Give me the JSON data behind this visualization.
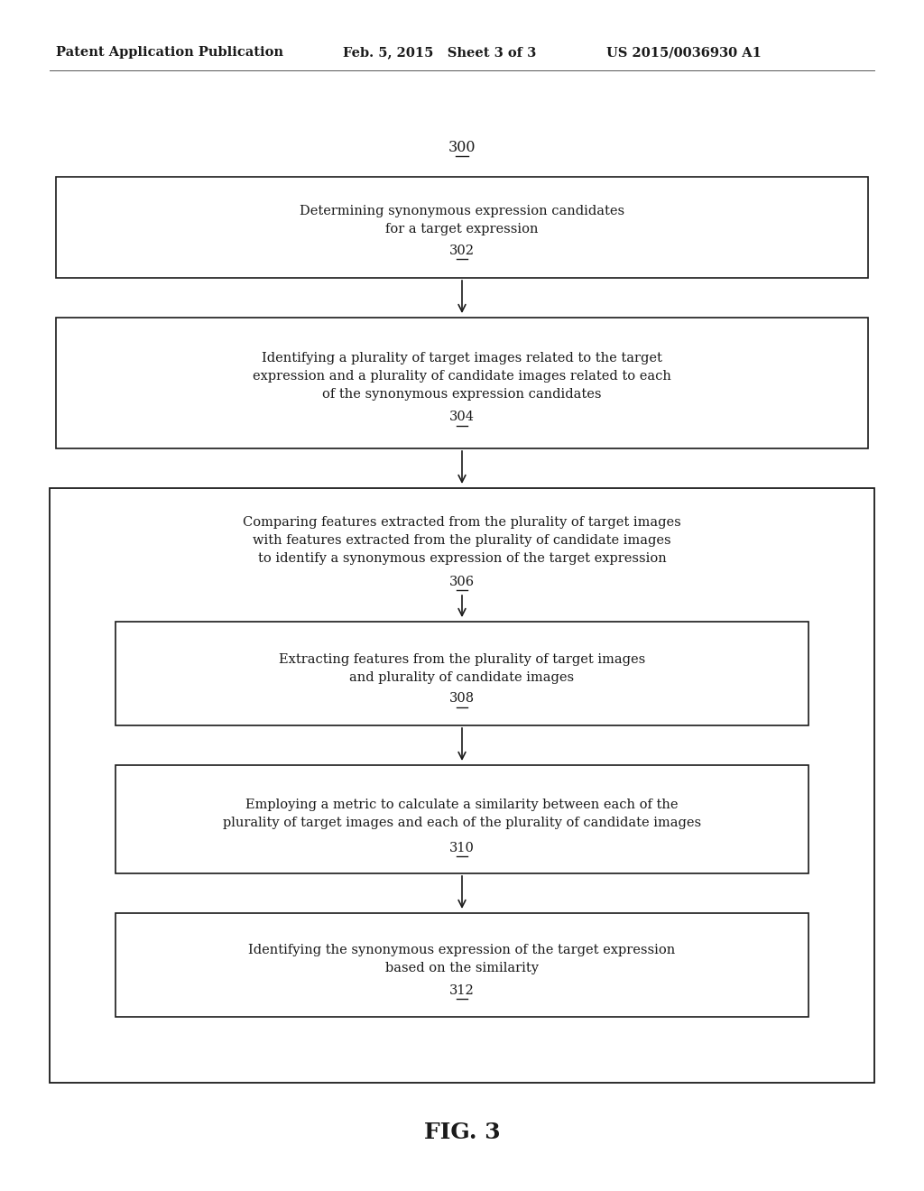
{
  "header_left": "Patent Application Publication",
  "header_mid": "Feb. 5, 2015   Sheet 3 of 3",
  "header_right": "US 2015/0036930 A1",
  "fig_label": "FIG. 3",
  "diagram_ref": "300",
  "background_color": "#ffffff",
  "line_color": "#1a1a1a",
  "header_fontsize": 10.5,
  "body_fontsize": 10.5,
  "ref_fontsize": 10.5,
  "fig_label_fontsize": 18
}
